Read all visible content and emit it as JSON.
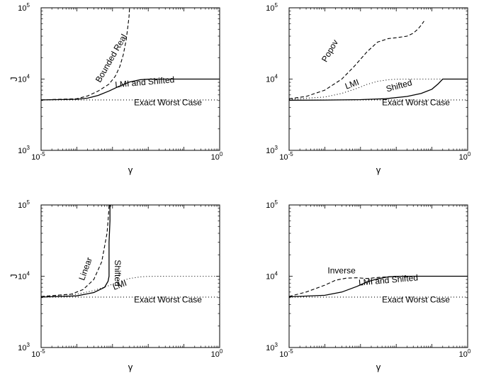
{
  "chart_data": [
    {
      "type": "line",
      "xlabel": "γ",
      "ylabel": "J",
      "xscale": "log",
      "yscale": "log",
      "xlim": [
        1e-05,
        1
      ],
      "ylim": [
        1000,
        100000
      ],
      "x_ticks": [
        {
          "base": "10",
          "exp": "-5"
        },
        {
          "base": "10",
          "exp": "0"
        }
      ],
      "y_ticks": [
        {
          "base": "10",
          "exp": "3"
        },
        {
          "base": "10",
          "exp": "4"
        },
        {
          "base": "10",
          "exp": "5"
        }
      ],
      "grid": false,
      "series": [
        {
          "name": "Exact Worst Case",
          "style": "dotted",
          "x": [
            1e-05,
            1
          ],
          "y": [
            5100,
            5100
          ]
        },
        {
          "name": "LMI and Shifted",
          "style": "solid",
          "x": [
            1e-05,
            0.0001,
            0.0002,
            0.0004,
            0.0008,
            0.0015,
            0.003,
            0.006,
            0.01,
            0.02,
            0.05,
            0.1,
            1
          ],
          "y": [
            5100,
            5200,
            5400,
            5900,
            6800,
            7900,
            9100,
            9800,
            9950,
            10000,
            10000,
            10000,
            10000
          ]
        },
        {
          "name": "Bounded Real",
          "style": "dashed",
          "x": [
            1e-05,
            0.0001,
            0.0002,
            0.0004,
            0.0008,
            0.0012,
            0.0016,
            0.002,
            0.0024,
            0.0027,
            0.0029,
            0.003
          ],
          "y": [
            5100,
            5300,
            5800,
            6800,
            8500,
            11000,
            15000,
            22000,
            35000,
            55000,
            75000,
            100000
          ]
        }
      ],
      "annotations": [
        {
          "text": "Bounded Real",
          "x": 0.00045,
          "y": 8800,
          "rotate": -60
        },
        {
          "text": "LMI and Shifted",
          "x": 0.0012,
          "y": 7600,
          "rotate": -5
        },
        {
          "text": "Exact Worst Case",
          "x": 0.004,
          "y": 4300,
          "rotate": 0
        }
      ]
    },
    {
      "type": "line",
      "xlabel": "γ",
      "ylabel": "",
      "xscale": "log",
      "yscale": "log",
      "xlim": [
        1e-05,
        1
      ],
      "ylim": [
        1000,
        100000
      ],
      "x_ticks": [
        {
          "base": "10",
          "exp": "-5"
        },
        {
          "base": "10",
          "exp": "0"
        }
      ],
      "y_ticks": [
        {
          "base": "10",
          "exp": "3"
        },
        {
          "base": "10",
          "exp": "4"
        },
        {
          "base": "10",
          "exp": "5"
        }
      ],
      "grid": false,
      "series": [
        {
          "name": "Exact Worst Case",
          "style": "dotted",
          "x": [
            1e-05,
            1
          ],
          "y": [
            5100,
            5100
          ]
        },
        {
          "name": "LMI",
          "style": "dotted",
          "x": [
            1e-05,
            0.0001,
            0.0003,
            0.0008,
            0.0015,
            0.003,
            0.006,
            0.01,
            0.03,
            1
          ],
          "y": [
            5200,
            5600,
            6300,
            7400,
            8400,
            9300,
            9800,
            9950,
            10000,
            10000
          ]
        },
        {
          "name": "Shifted",
          "style": "solid",
          "x": [
            1e-05,
            0.0001,
            0.001,
            0.005,
            0.02,
            0.05,
            0.1,
            0.15,
            0.2,
            1
          ],
          "y": [
            5050,
            5080,
            5150,
            5300,
            5700,
            6300,
            7200,
            8600,
            10000,
            10000
          ]
        },
        {
          "name": "Popov",
          "style": "dashed",
          "x": [
            1e-05,
            3e-05,
            0.0001,
            0.0003,
            0.0007,
            0.0015,
            0.003,
            0.006,
            0.01,
            0.02,
            0.03,
            0.04,
            0.05,
            0.06
          ],
          "y": [
            5300,
            5700,
            7000,
            10000,
            15500,
            24000,
            33000,
            37000,
            38000,
            40000,
            44000,
            50000,
            57000,
            65000
          ]
        }
      ],
      "annotations": [
        {
          "text": "Popov",
          "x": 0.00011,
          "y": 17000,
          "rotate": -60
        },
        {
          "text": "LMI",
          "x": 0.0004,
          "y": 7200,
          "rotate": -20
        },
        {
          "text": "Shifted",
          "x": 0.0055,
          "y": 6600,
          "rotate": -15
        },
        {
          "text": "Exact Worst Case",
          "x": 0.004,
          "y": 4300,
          "rotate": 0
        }
      ]
    },
    {
      "type": "line",
      "xlabel": "γ",
      "ylabel": "J",
      "xscale": "log",
      "yscale": "log",
      "xlim": [
        1e-05,
        1
      ],
      "ylim": [
        1000,
        100000
      ],
      "x_ticks": [
        {
          "base": "10",
          "exp": "-5"
        },
        {
          "base": "10",
          "exp": "0"
        }
      ],
      "y_ticks": [
        {
          "base": "10",
          "exp": "3"
        },
        {
          "base": "10",
          "exp": "4"
        },
        {
          "base": "10",
          "exp": "5"
        }
      ],
      "grid": false,
      "series": [
        {
          "name": "Exact Worst Case",
          "style": "dotted",
          "x": [
            1e-05,
            1
          ],
          "y": [
            5100,
            5100
          ]
        },
        {
          "name": "LMI",
          "style": "dotted",
          "x": [
            1e-05,
            0.0001,
            0.0003,
            0.0008,
            0.0015,
            0.003,
            0.006,
            0.01,
            0.03,
            1
          ],
          "y": [
            5200,
            5600,
            6300,
            7400,
            8400,
            9300,
            9800,
            9950,
            10000,
            10000
          ]
        },
        {
          "name": "Shifted",
          "style": "solid",
          "x": [
            1e-05,
            0.0001,
            0.0003,
            0.0006,
            0.00075,
            0.0008,
            0.0008,
            0.00085,
            0.00085
          ],
          "y": [
            5100,
            5300,
            5900,
            7000,
            8500,
            10000,
            30000,
            60000,
            100000
          ]
        },
        {
          "name": "Linear",
          "style": "dashed",
          "x": [
            1e-05,
            7e-05,
            0.00015,
            0.0003,
            0.0005,
            0.0007,
            0.00075,
            0.00078,
            0.0008
          ],
          "y": [
            5200,
            5600,
            6500,
            9000,
            16000,
            40000,
            60000,
            80000,
            100000
          ]
        }
      ],
      "annotations": [
        {
          "text": "Linear",
          "x": 0.00016,
          "y": 8600,
          "rotate": -70
        },
        {
          "text": "Shifted",
          "x": 0.00115,
          "y": 17000,
          "rotate": 90
        },
        {
          "text": "LMI",
          "x": 0.0011,
          "y": 6400,
          "rotate": -20
        },
        {
          "text": "Exact Worst Case",
          "x": 0.004,
          "y": 4300,
          "rotate": 0
        }
      ]
    },
    {
      "type": "line",
      "xlabel": "γ",
      "ylabel": "",
      "xscale": "log",
      "yscale": "log",
      "xlim": [
        1e-05,
        1
      ],
      "ylim": [
        1000,
        100000
      ],
      "x_ticks": [
        {
          "base": "10",
          "exp": "-5"
        },
        {
          "base": "10",
          "exp": "0"
        }
      ],
      "y_ticks": [
        {
          "base": "10",
          "exp": "3"
        },
        {
          "base": "10",
          "exp": "4"
        },
        {
          "base": "10",
          "exp": "5"
        }
      ],
      "grid": false,
      "series": [
        {
          "name": "Exact Worst Case",
          "style": "dotted",
          "x": [
            1e-05,
            1
          ],
          "y": [
            5100,
            5100
          ]
        },
        {
          "name": "LMI and Shifted",
          "style": "solid",
          "x": [
            1e-05,
            0.0001,
            0.0003,
            0.0008,
            0.0015,
            0.003,
            0.006,
            0.01,
            0.03,
            1
          ],
          "y": [
            5150,
            5400,
            6000,
            7200,
            8300,
            9200,
            9800,
            9950,
            10000,
            10000
          ]
        },
        {
          "name": "Inverse",
          "style": "dashed",
          "x": [
            1e-05,
            3e-05,
            0.0001,
            0.0002,
            0.0004,
            0.0008,
            0.0015,
            0.003,
            0.01,
            1
          ],
          "y": [
            5200,
            6000,
            7500,
            8800,
            9400,
            9500,
            9300,
            9600,
            10000,
            10000
          ]
        }
      ],
      "annotations": [
        {
          "text": "Inverse",
          "x": 0.00012,
          "y": 11000,
          "rotate": 0
        },
        {
          "text": "LMI and Shifted",
          "x": 0.0009,
          "y": 7400,
          "rotate": -5
        },
        {
          "text": "Exact Worst Case",
          "x": 0.004,
          "y": 4300,
          "rotate": 0
        }
      ]
    }
  ]
}
